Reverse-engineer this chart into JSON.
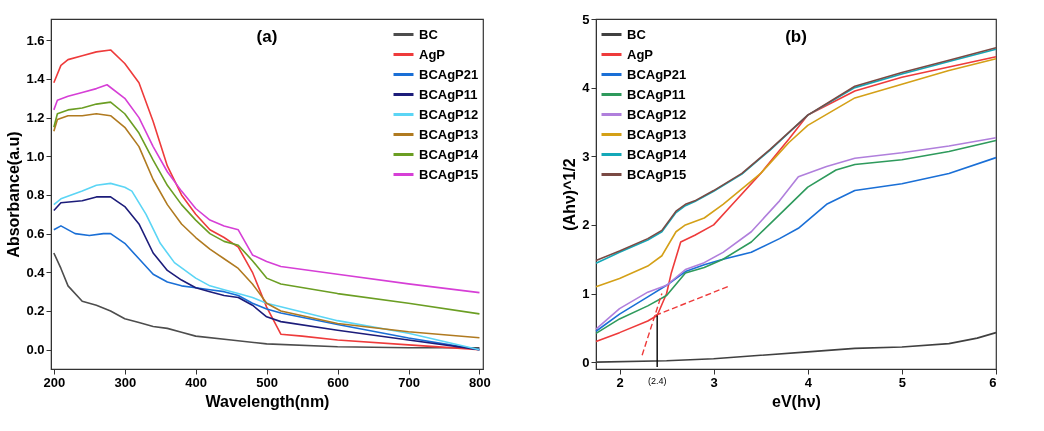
{
  "chart_data": [
    {
      "type": "line",
      "xlabel": "Wavelength(nm)",
      "ylabel": "Absorbance(a.u)",
      "annotations": [
        "(a)"
      ],
      "xlim": [
        196,
        805
      ],
      "xticks": [
        200,
        300,
        400,
        500,
        600,
        700,
        800
      ],
      "ylim": [
        -0.1,
        1.71
      ],
      "yticks": [
        {
          "value": 0,
          "label": "0.0"
        },
        0.2,
        0.4,
        0.6,
        0.8,
        {
          "value": 1,
          "label": "1.0"
        },
        1.2,
        1.4,
        1.6
      ],
      "grid": false,
      "legend": "top right",
      "marker": "none",
      "line_style": "solid",
      "series": [
        {
          "name": "BC",
          "color": "#4d4d4d",
          "x": [
            200,
            210,
            220,
            240,
            260,
            280,
            300,
            320,
            340,
            360,
            380,
            400,
            450,
            500,
            600,
            700,
            800
          ],
          "values": [
            0.5,
            0.42,
            0.33,
            0.25,
            0.23,
            0.2,
            0.16,
            0.14,
            0.12,
            0.11,
            0.09,
            0.07,
            0.05,
            0.03,
            0.015,
            0.01,
            0.01
          ]
        },
        {
          "name": "AgP",
          "color": "#ee3b3b",
          "x": [
            200,
            210,
            220,
            240,
            260,
            280,
            300,
            320,
            340,
            360,
            380,
            400,
            420,
            440,
            460,
            480,
            500,
            520,
            550,
            600,
            700,
            800
          ],
          "values": [
            1.38,
            1.47,
            1.5,
            1.52,
            1.54,
            1.55,
            1.48,
            1.38,
            1.18,
            0.95,
            0.8,
            0.7,
            0.62,
            0.58,
            0.53,
            0.4,
            0.22,
            0.08,
            0.07,
            0.05,
            0.025,
            0.0
          ]
        },
        {
          "name": "BCAgP21",
          "color": "#1a6fd6",
          "x": [
            200,
            210,
            230,
            250,
            270,
            280,
            300,
            320,
            340,
            360,
            380,
            400,
            420,
            440,
            460,
            480,
            500,
            520,
            600,
            700,
            800
          ],
          "values": [
            0.62,
            0.64,
            0.6,
            0.59,
            0.6,
            0.6,
            0.55,
            0.47,
            0.39,
            0.35,
            0.33,
            0.32,
            0.31,
            0.3,
            0.28,
            0.24,
            0.21,
            0.19,
            0.13,
            0.06,
            0.0
          ]
        },
        {
          "name": "BCAgP11",
          "color": "#1c1c7a",
          "x": [
            200,
            210,
            240,
            260,
            280,
            300,
            320,
            340,
            360,
            380,
            400,
            420,
            440,
            460,
            480,
            500,
            520,
            600,
            700,
            800
          ],
          "values": [
            0.72,
            0.76,
            0.77,
            0.79,
            0.79,
            0.74,
            0.65,
            0.5,
            0.41,
            0.36,
            0.32,
            0.3,
            0.28,
            0.27,
            0.23,
            0.17,
            0.145,
            0.1,
            0.05,
            0.0
          ]
        },
        {
          "name": "BCAgP12",
          "color": "#5bd5f5",
          "x": [
            200,
            210,
            240,
            260,
            280,
            300,
            310,
            330,
            350,
            370,
            400,
            420,
            440,
            460,
            480,
            500,
            600,
            700,
            800
          ],
          "values": [
            0.75,
            0.78,
            0.82,
            0.85,
            0.86,
            0.84,
            0.82,
            0.7,
            0.55,
            0.45,
            0.37,
            0.33,
            0.31,
            0.29,
            0.27,
            0.24,
            0.15,
            0.085,
            0.0
          ]
        },
        {
          "name": "BCAgP13",
          "color": "#b07a20",
          "x": [
            200,
            205,
            220,
            240,
            260,
            280,
            300,
            320,
            340,
            360,
            380,
            400,
            420,
            440,
            460,
            480,
            500,
            520,
            600,
            700,
            800
          ],
          "values": [
            1.13,
            1.19,
            1.21,
            1.21,
            1.22,
            1.21,
            1.15,
            1.05,
            0.88,
            0.75,
            0.65,
            0.58,
            0.52,
            0.47,
            0.42,
            0.34,
            0.24,
            0.2,
            0.135,
            0.093,
            0.062
          ]
        },
        {
          "name": "BCAgP14",
          "color": "#6b9e23",
          "x": [
            200,
            205,
            220,
            240,
            260,
            280,
            300,
            320,
            340,
            360,
            380,
            400,
            420,
            440,
            460,
            480,
            500,
            520,
            600,
            700,
            800
          ],
          "values": [
            1.15,
            1.22,
            1.24,
            1.25,
            1.27,
            1.28,
            1.22,
            1.12,
            0.98,
            0.85,
            0.75,
            0.67,
            0.6,
            0.56,
            0.54,
            0.46,
            0.37,
            0.34,
            0.29,
            0.24,
            0.185
          ]
        },
        {
          "name": "BCAgP15",
          "color": "#d63fd6",
          "x": [
            200,
            205,
            220,
            240,
            260,
            275,
            300,
            320,
            340,
            360,
            380,
            400,
            420,
            440,
            460,
            480,
            500,
            520,
            600,
            700,
            800
          ],
          "values": [
            1.24,
            1.29,
            1.31,
            1.33,
            1.35,
            1.37,
            1.3,
            1.2,
            1.05,
            0.92,
            0.82,
            0.73,
            0.67,
            0.64,
            0.62,
            0.49,
            0.456,
            0.43,
            0.39,
            0.34,
            0.295
          ]
        }
      ]
    },
    {
      "type": "line",
      "xlabel": "eV(hν)",
      "ylabel": "(Ahν)^1/2",
      "annotations": [
        "(b)",
        "(2.4)"
      ],
      "xlim": [
        1.75,
        6.0
      ],
      "xticks": [
        2,
        3,
        4,
        5,
        6
      ],
      "ylim": [
        -0.1,
        5.0
      ],
      "yticks": [
        0,
        1,
        2,
        3,
        4,
        5
      ],
      "grid": false,
      "legend": "top left",
      "marker": "none",
      "line_style": "solid",
      "series": [
        {
          "name": "BC",
          "color": "#404040",
          "x": [
            1.75,
            2.5,
            3,
            3.5,
            4,
            4.5,
            5,
            5.5,
            5.8,
            6
          ],
          "values": [
            0.0,
            0.02,
            0.05,
            0.1,
            0.15,
            0.2,
            0.22,
            0.27,
            0.35,
            0.43
          ]
        },
        {
          "name": "AgP",
          "color": "#ee3b3b",
          "x": [
            1.75,
            2,
            2.3,
            2.4,
            2.5,
            2.55,
            2.65,
            2.8,
            3,
            3.2,
            3.5,
            3.8,
            4,
            4.5,
            5,
            5.5,
            6
          ],
          "values": [
            0.3,
            0.43,
            0.6,
            0.68,
            1.0,
            1.3,
            1.75,
            1.85,
            2.0,
            2.3,
            2.75,
            3.25,
            3.6,
            3.95,
            4.15,
            4.3,
            4.45
          ]
        },
        {
          "name": "BCAgP21",
          "color": "#1a6fd6",
          "x": [
            1.75,
            2,
            2.3,
            2.5,
            2.7,
            2.9,
            3.1,
            3.4,
            3.7,
            3.9,
            4.2,
            4.5,
            5,
            5.5,
            6
          ],
          "values": [
            0.45,
            0.7,
            0.95,
            1.12,
            1.32,
            1.42,
            1.5,
            1.6,
            1.8,
            1.95,
            2.3,
            2.5,
            2.6,
            2.75,
            2.98
          ]
        },
        {
          "name": "BCAgP11",
          "color": "#2e9a5c",
          "x": [
            1.75,
            2,
            2.3,
            2.5,
            2.7,
            2.9,
            3.1,
            3.4,
            3.7,
            4,
            4.3,
            4.5,
            5,
            5.5,
            6
          ],
          "values": [
            0.42,
            0.63,
            0.82,
            0.97,
            1.3,
            1.38,
            1.5,
            1.75,
            2.15,
            2.55,
            2.8,
            2.88,
            2.95,
            3.07,
            3.23
          ]
        },
        {
          "name": "BCAgP12",
          "color": "#b07fdc",
          "x": [
            1.75,
            2,
            2.3,
            2.5,
            2.7,
            2.9,
            3.1,
            3.4,
            3.7,
            3.9,
            4.2,
            4.5,
            5,
            5.5,
            6
          ],
          "values": [
            0.48,
            0.78,
            1.02,
            1.12,
            1.35,
            1.45,
            1.6,
            1.9,
            2.35,
            2.7,
            2.85,
            2.97,
            3.05,
            3.15,
            3.27
          ]
        },
        {
          "name": "BCAgP13",
          "color": "#d4a017",
          "x": [
            1.75,
            2,
            2.3,
            2.45,
            2.6,
            2.7,
            2.9,
            3.1,
            3.5,
            3.8,
            4,
            4.5,
            5,
            5.5,
            6
          ],
          "values": [
            1.1,
            1.22,
            1.4,
            1.55,
            1.9,
            2.0,
            2.1,
            2.3,
            2.75,
            3.2,
            3.45,
            3.85,
            4.05,
            4.25,
            4.42
          ]
        },
        {
          "name": "BCAgP14",
          "color": "#14a8b8",
          "x": [
            1.75,
            2,
            2.3,
            2.45,
            2.6,
            2.7,
            2.8,
            3,
            3.3,
            3.6,
            4,
            4.5,
            5,
            5.5,
            6
          ],
          "values": [
            1.44,
            1.6,
            1.78,
            1.9,
            2.18,
            2.28,
            2.34,
            2.49,
            2.74,
            3.09,
            3.6,
            4.0,
            4.2,
            4.38,
            4.56
          ]
        },
        {
          "name": "BCAgP15",
          "color": "#7a4a44",
          "x": [
            1.75,
            2,
            2.3,
            2.45,
            2.6,
            2.7,
            2.8,
            3,
            3.3,
            3.6,
            4,
            4.5,
            5,
            5.5,
            6
          ],
          "values": [
            1.48,
            1.62,
            1.8,
            1.92,
            2.2,
            2.3,
            2.35,
            2.5,
            2.75,
            3.1,
            3.6,
            4.02,
            4.22,
            4.4,
            4.58
          ]
        },
        {
          "type": "line",
          "color": "#ee3b3b",
          "line_style": "dashed",
          "x": [
            2.24,
            2.45
          ],
          "values": [
            0.1,
            1.0
          ]
        },
        {
          "type": "line",
          "color": "#ee3b3b",
          "line_style": "dashed",
          "x": [
            2.38,
            3.15
          ],
          "values": [
            0.68,
            1.1
          ]
        },
        {
          "type": "line",
          "color": "#000000",
          "x": [
            2.4,
            2.4
          ],
          "values": [
            0.68,
            -0.07
          ]
        }
      ]
    }
  ]
}
